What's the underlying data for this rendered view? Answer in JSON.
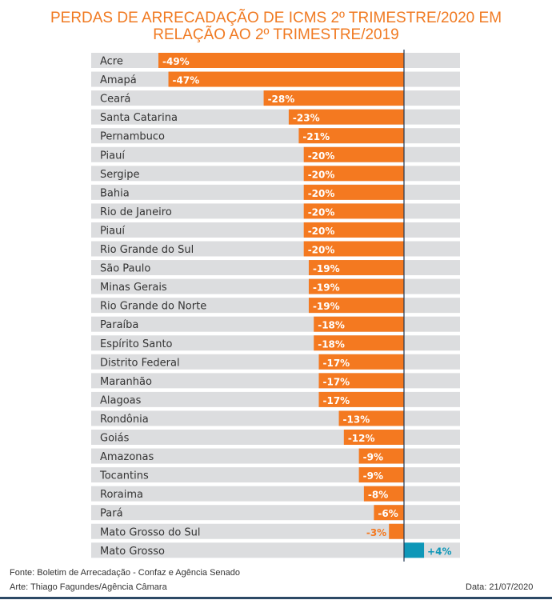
{
  "chart_data": {
    "type": "bar",
    "orientation": "horizontal",
    "title": "PERDAS DE ARRECADAÇÃO DE ICMS 2º TRIMESTRE/2020 EM RELAÇÃO AO 2º TRIMESTRE/2019",
    "title_lines": [
      "PERDAS DE ARRECADAÇÃO DE ICMS 2º TRIMESTRE/2020 EM",
      "RELAÇÃO AO 2º TRIMESTRE/2019"
    ],
    "xlabel": "",
    "ylabel": "",
    "unit": "%",
    "xlim": [
      -49,
      11
    ],
    "grid": false,
    "categories": [
      "Acre",
      "Amapá",
      "Ceará",
      "Santa Catarina",
      "Pernambuco",
      "Piauí",
      "Sergipe",
      "Bahia",
      "Rio de Janeiro",
      "Piauí",
      "Rio Grande do Sul",
      "São Paulo",
      "Minas Gerais",
      "Rio Grande do Norte",
      "Paraíba",
      "Espírito Santo",
      "Distrito Federal",
      "Maranhão",
      "Alagoas",
      "Rondônia",
      "Goiás",
      "Amazonas",
      "Tocantins",
      "Roraima",
      "Pará",
      "Mato Grosso do Sul",
      "Mato Grosso"
    ],
    "values": [
      -49,
      -47,
      -28,
      -23,
      -21,
      -20,
      -20,
      -20,
      -20,
      -20,
      -20,
      -19,
      -19,
      -19,
      -18,
      -18,
      -17,
      -17,
      -17,
      -13,
      -12,
      -9,
      -9,
      -8,
      -6,
      -3,
      4
    ],
    "labels": [
      "-49%",
      "-47%",
      "-28%",
      "-23%",
      "-21%",
      "-20%",
      "-20%",
      "-20%",
      "-20%",
      "-20%",
      "-20%",
      "-19%",
      "-19%",
      "-19%",
      "-18%",
      "-18%",
      "-17%",
      "-17%",
      "-17%",
      "-13%",
      "-12%",
      "-9%",
      "-9%",
      "-8%",
      "-6%",
      "-3%",
      "+4%"
    ],
    "colors": {
      "negative": "#f47920",
      "positive": "#0e97b8",
      "row_background": "#dcdddf",
      "zero_line": "#1f3550",
      "title": "#f07a22"
    }
  },
  "footer": {
    "source": "Fonte: Boletim de Arrecadação - Confaz e Agência Senado",
    "art": "Arte: Thiago Fagundes/Agência Câmara",
    "date": "Data: 21/07/2020"
  }
}
